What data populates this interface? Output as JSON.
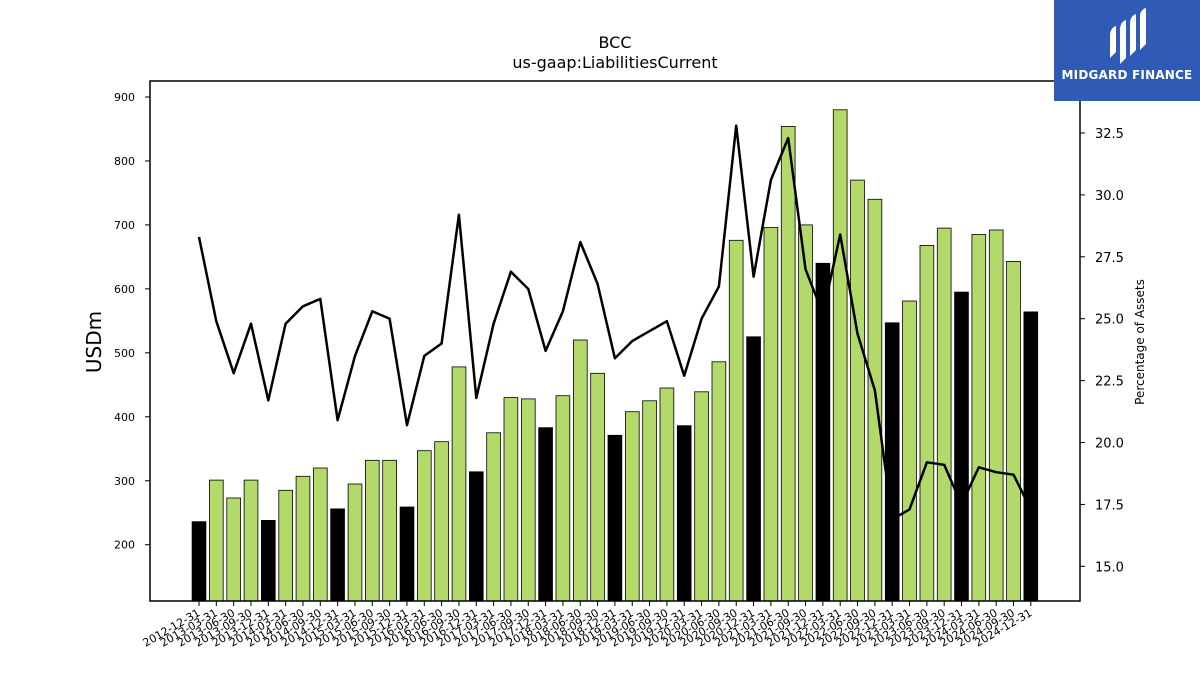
{
  "logo": {
    "text": "MIDGARD FINANCE"
  },
  "chart_data": {
    "type": "bar",
    "title": "BCC",
    "subtitle": "us-gaap:LiabilitiesCurrent",
    "ylabel": "USDm",
    "y2label": "Percentage of Assets",
    "ylim": [
      112,
      925
    ],
    "y2lim": [
      13.6,
      34.6
    ],
    "yticks": [
      200,
      300,
      400,
      500,
      600,
      700,
      800,
      900
    ],
    "y2ticks": [
      "15.0",
      "17.5",
      "20.0",
      "22.5",
      "25.0",
      "27.5",
      "30.0",
      "32.5"
    ],
    "categories": [
      "2012-12-31",
      "2013-03-31",
      "2013-06-30",
      "2013-09-30",
      "2013-12-31",
      "2014-03-31",
      "2014-06-30",
      "2014-09-30",
      "2014-12-31",
      "2015-03-31",
      "2015-06-30",
      "2015-09-30",
      "2015-12-31",
      "2016-03-31",
      "2016-06-30",
      "2016-09-30",
      "2016-12-31",
      "2017-03-31",
      "2017-06-30",
      "2017-09-30",
      "2017-12-31",
      "2018-03-31",
      "2018-06-30",
      "2018-09-30",
      "2018-12-31",
      "2019-03-31",
      "2019-06-30",
      "2019-09-30",
      "2019-12-31",
      "2020-03-31",
      "2020-06-30",
      "2020-09-30",
      "2020-12-31",
      "2021-03-31",
      "2021-06-30",
      "2021-09-30",
      "2021-12-31",
      "2022-03-31",
      "2022-06-30",
      "2022-09-30",
      "2022-12-31",
      "2023-03-31",
      "2023-06-30",
      "2023-09-30",
      "2023-12-31",
      "2024-03-31",
      "2024-06-30",
      "2024-09-30",
      "2024-12-31"
    ],
    "series": [
      {
        "axis": "left",
        "kind": "bar",
        "values": [
          236,
          301,
          273,
          301,
          238,
          285,
          307,
          320,
          256,
          295,
          332,
          332,
          259,
          347,
          361,
          478,
          314,
          375,
          430,
          428,
          383,
          433,
          520,
          468,
          371,
          408,
          425,
          445,
          386,
          439,
          486,
          676,
          525,
          696,
          854,
          700,
          640,
          880,
          770,
          740,
          547,
          581,
          668,
          695,
          595,
          685,
          692,
          643,
          564
        ],
        "colors": {
          "annual": "#000000",
          "quarter": "#b3d96b"
        },
        "annual_flags": [
          1,
          0,
          0,
          0,
          1,
          0,
          0,
          0,
          1,
          0,
          0,
          0,
          1,
          0,
          0,
          0,
          1,
          0,
          0,
          0,
          1,
          0,
          0,
          0,
          1,
          0,
          0,
          0,
          1,
          0,
          0,
          0,
          1,
          0,
          0,
          0,
          1,
          0,
          0,
          0,
          1,
          0,
          0,
          0,
          1,
          0,
          0,
          0,
          1
        ]
      },
      {
        "axis": "right",
        "kind": "line",
        "color": "#000000",
        "values": [
          28.3,
          24.9,
          22.8,
          24.8,
          21.7,
          24.8,
          25.5,
          25.8,
          20.9,
          23.5,
          25.3,
          25.0,
          20.7,
          23.5,
          24.0,
          29.2,
          21.8,
          24.8,
          26.9,
          26.2,
          23.7,
          25.3,
          28.1,
          26.4,
          23.4,
          24.1,
          24.5,
          24.9,
          22.7,
          25.0,
          26.3,
          32.8,
          26.7,
          30.6,
          32.3,
          27.0,
          25.2,
          28.4,
          24.4,
          22.1,
          16.9,
          17.3,
          19.2,
          19.1,
          17.5,
          19.0,
          18.8,
          18.7,
          17.3
        ]
      }
    ],
    "legend": "none",
    "grid": false
  }
}
